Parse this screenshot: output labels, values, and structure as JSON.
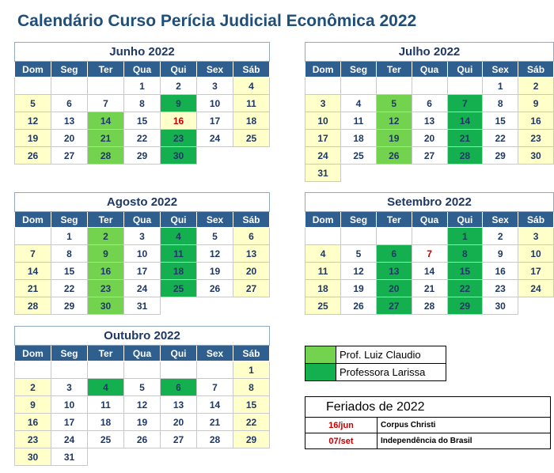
{
  "title": "Calendário Curso Perícia Judicial Econômica 2022",
  "weekdays": [
    "Dom",
    "Seg",
    "Ter",
    "Qua",
    "Qui",
    "Sex",
    "Sáb"
  ],
  "months": [
    {
      "name": "Junho 2022",
      "weeks": [
        [
          {
            "d": ""
          },
          {
            "d": ""
          },
          {
            "d": ""
          },
          {
            "d": "1"
          },
          {
            "d": "2"
          },
          {
            "d": "3"
          },
          {
            "d": "4",
            "s": "w"
          }
        ],
        [
          {
            "d": "5",
            "s": "w"
          },
          {
            "d": "6"
          },
          {
            "d": "7"
          },
          {
            "d": "8"
          },
          {
            "d": "9",
            "s": "k"
          },
          {
            "d": "10"
          },
          {
            "d": "11",
            "s": "w"
          }
        ],
        [
          {
            "d": "12",
            "s": "w"
          },
          {
            "d": "13"
          },
          {
            "d": "14",
            "s": "l"
          },
          {
            "d": "15"
          },
          {
            "d": "16",
            "s": "w",
            "h": true
          },
          {
            "d": "17"
          },
          {
            "d": "18",
            "s": "w"
          }
        ],
        [
          {
            "d": "19",
            "s": "w"
          },
          {
            "d": "20"
          },
          {
            "d": "21",
            "s": "l"
          },
          {
            "d": "22"
          },
          {
            "d": "23",
            "s": "k"
          },
          {
            "d": "24"
          },
          {
            "d": "25",
            "s": "w"
          }
        ],
        [
          {
            "d": "26",
            "s": "w"
          },
          {
            "d": "27"
          },
          {
            "d": "28",
            "s": "l"
          },
          {
            "d": "29"
          },
          {
            "d": "30",
            "s": "k"
          },
          {
            "d": "",
            "s": "x"
          },
          {
            "d": "",
            "s": "x"
          }
        ]
      ]
    },
    {
      "name": "Julho 2022",
      "weeks": [
        [
          {
            "d": ""
          },
          {
            "d": ""
          },
          {
            "d": ""
          },
          {
            "d": ""
          },
          {
            "d": ""
          },
          {
            "d": "1"
          },
          {
            "d": "2",
            "s": "w"
          }
        ],
        [
          {
            "d": "3",
            "s": "w"
          },
          {
            "d": "4"
          },
          {
            "d": "5",
            "s": "l"
          },
          {
            "d": "6"
          },
          {
            "d": "7",
            "s": "k"
          },
          {
            "d": "8"
          },
          {
            "d": "9",
            "s": "w"
          }
        ],
        [
          {
            "d": "10",
            "s": "w"
          },
          {
            "d": "11"
          },
          {
            "d": "12",
            "s": "l"
          },
          {
            "d": "13"
          },
          {
            "d": "14",
            "s": "k"
          },
          {
            "d": "15"
          },
          {
            "d": "16",
            "s": "w"
          }
        ],
        [
          {
            "d": "17",
            "s": "w"
          },
          {
            "d": "18"
          },
          {
            "d": "19",
            "s": "l"
          },
          {
            "d": "20"
          },
          {
            "d": "21",
            "s": "k"
          },
          {
            "d": "22"
          },
          {
            "d": "23",
            "s": "w"
          }
        ],
        [
          {
            "d": "24",
            "s": "w"
          },
          {
            "d": "25"
          },
          {
            "d": "26",
            "s": "l"
          },
          {
            "d": "27"
          },
          {
            "d": "28",
            "s": "k"
          },
          {
            "d": "29"
          },
          {
            "d": "30",
            "s": "w"
          }
        ],
        [
          {
            "d": "31",
            "s": "w"
          },
          {
            "d": "",
            "s": "x"
          },
          {
            "d": "",
            "s": "x"
          },
          {
            "d": "",
            "s": "x"
          },
          {
            "d": "",
            "s": "x"
          },
          {
            "d": "",
            "s": "x"
          },
          {
            "d": "",
            "s": "x"
          }
        ]
      ]
    },
    {
      "name": "Agosto 2022",
      "weeks": [
        [
          {
            "d": ""
          },
          {
            "d": "1"
          },
          {
            "d": "2",
            "s": "l"
          },
          {
            "d": "3"
          },
          {
            "d": "4",
            "s": "k"
          },
          {
            "d": "5"
          },
          {
            "d": "6",
            "s": "w"
          }
        ],
        [
          {
            "d": "7",
            "s": "w"
          },
          {
            "d": "8"
          },
          {
            "d": "9",
            "s": "l"
          },
          {
            "d": "10"
          },
          {
            "d": "11",
            "s": "k"
          },
          {
            "d": "12"
          },
          {
            "d": "13",
            "s": "w"
          }
        ],
        [
          {
            "d": "14",
            "s": "w"
          },
          {
            "d": "15"
          },
          {
            "d": "16",
            "s": "l"
          },
          {
            "d": "17"
          },
          {
            "d": "18",
            "s": "k"
          },
          {
            "d": "19"
          },
          {
            "d": "20",
            "s": "w"
          }
        ],
        [
          {
            "d": "21",
            "s": "w"
          },
          {
            "d": "22"
          },
          {
            "d": "23",
            "s": "l"
          },
          {
            "d": "24"
          },
          {
            "d": "25",
            "s": "k"
          },
          {
            "d": "26"
          },
          {
            "d": "27",
            "s": "w"
          }
        ],
        [
          {
            "d": "28",
            "s": "w"
          },
          {
            "d": "29"
          },
          {
            "d": "30",
            "s": "l"
          },
          {
            "d": "31"
          },
          {
            "d": "",
            "s": "x"
          },
          {
            "d": "",
            "s": "x"
          },
          {
            "d": "",
            "s": "x"
          }
        ]
      ]
    },
    {
      "name": "Setembro 2022",
      "weeks": [
        [
          {
            "d": ""
          },
          {
            "d": ""
          },
          {
            "d": ""
          },
          {
            "d": ""
          },
          {
            "d": "1",
            "s": "k"
          },
          {
            "d": "2"
          },
          {
            "d": "3",
            "s": "w"
          }
        ],
        [
          {
            "d": "4",
            "s": "w"
          },
          {
            "d": "5"
          },
          {
            "d": "6",
            "s": "k"
          },
          {
            "d": "7",
            "h": true
          },
          {
            "d": "8",
            "s": "k"
          },
          {
            "d": "9"
          },
          {
            "d": "10",
            "s": "w"
          }
        ],
        [
          {
            "d": "11",
            "s": "w"
          },
          {
            "d": "12"
          },
          {
            "d": "13",
            "s": "k"
          },
          {
            "d": "14"
          },
          {
            "d": "15",
            "s": "k"
          },
          {
            "d": "16"
          },
          {
            "d": "17",
            "s": "w"
          }
        ],
        [
          {
            "d": "18",
            "s": "w"
          },
          {
            "d": "19"
          },
          {
            "d": "20",
            "s": "k"
          },
          {
            "d": "21"
          },
          {
            "d": "22",
            "s": "k"
          },
          {
            "d": "23"
          },
          {
            "d": "24",
            "s": "w"
          }
        ],
        [
          {
            "d": "25",
            "s": "w"
          },
          {
            "d": "26"
          },
          {
            "d": "27",
            "s": "k"
          },
          {
            "d": "28"
          },
          {
            "d": "29",
            "s": "k"
          },
          {
            "d": "30"
          },
          {
            "d": "",
            "s": "x"
          }
        ]
      ]
    },
    {
      "name": "Outubro 2022",
      "weeks": [
        [
          {
            "d": ""
          },
          {
            "d": ""
          },
          {
            "d": ""
          },
          {
            "d": ""
          },
          {
            "d": ""
          },
          {
            "d": ""
          },
          {
            "d": "1",
            "s": "w"
          }
        ],
        [
          {
            "d": "2",
            "s": "w"
          },
          {
            "d": "3"
          },
          {
            "d": "4",
            "s": "k"
          },
          {
            "d": "5"
          },
          {
            "d": "6",
            "s": "k"
          },
          {
            "d": "7"
          },
          {
            "d": "8",
            "s": "w"
          }
        ],
        [
          {
            "d": "9",
            "s": "w"
          },
          {
            "d": "10"
          },
          {
            "d": "11"
          },
          {
            "d": "12"
          },
          {
            "d": "13"
          },
          {
            "d": "14"
          },
          {
            "d": "15",
            "s": "w"
          }
        ],
        [
          {
            "d": "16",
            "s": "w"
          },
          {
            "d": "17"
          },
          {
            "d": "18"
          },
          {
            "d": "19"
          },
          {
            "d": "20"
          },
          {
            "d": "21"
          },
          {
            "d": "22",
            "s": "w"
          }
        ],
        [
          {
            "d": "23",
            "s": "w"
          },
          {
            "d": "24"
          },
          {
            "d": "25"
          },
          {
            "d": "26"
          },
          {
            "d": "27"
          },
          {
            "d": "28"
          },
          {
            "d": "29",
            "s": "w"
          }
        ],
        [
          {
            "d": "30",
            "s": "w"
          },
          {
            "d": "31"
          },
          {
            "d": "",
            "s": "x"
          },
          {
            "d": "",
            "s": "x"
          },
          {
            "d": "",
            "s": "x"
          },
          {
            "d": "",
            "s": "x"
          },
          {
            "d": "",
            "s": "x"
          }
        ]
      ]
    }
  ],
  "legend": [
    {
      "label": "Prof. Luiz Claudio",
      "color": "#73d34f"
    },
    {
      "label": "Professora Larissa",
      "color": "#14b04f"
    }
  ],
  "holidays": {
    "title": "Feriados de 2022",
    "items": [
      {
        "date": "16/jun",
        "name": "Corpus Christi"
      },
      {
        "date": "07/set",
        "name": "Independência do Brasil"
      }
    ]
  },
  "colors": {
    "weekend": "#ffffc9",
    "luiz": "#73d34f",
    "larissa": "#14b04f",
    "header": "#2f5f8f",
    "holiday_text": "#c00000"
  }
}
